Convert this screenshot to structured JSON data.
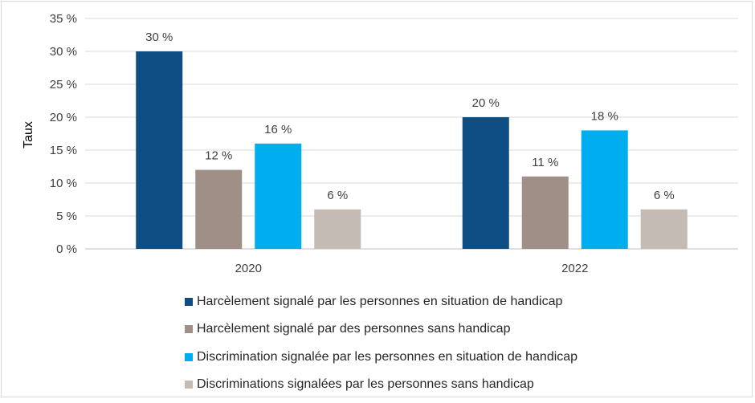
{
  "chart_data": {
    "type": "bar",
    "categories": [
      "2020",
      "2022"
    ],
    "series": [
      {
        "name": "Harcèlement signalé par les personnes en situation de handicap",
        "values": [
          30,
          20
        ],
        "color": "#0f4e82",
        "labels": [
          "30 %",
          "20 %"
        ]
      },
      {
        "name": "Harcèlement signalé par des personnes sans handicap",
        "values": [
          12,
          11
        ],
        "color": "#9f8f86",
        "labels": [
          "12 %",
          "11 %"
        ]
      },
      {
        "name": "Discrimination signalée par les personnes en situation de handicap",
        "values": [
          16,
          18
        ],
        "color": "#00aeef",
        "labels": [
          "16 %",
          "18 %"
        ]
      },
      {
        "name": "Discriminations signalées par les personnes sans handicap",
        "values": [
          6,
          6
        ],
        "color": "#c4bbb5",
        "labels": [
          "6 %",
          "6 %"
        ]
      }
    ],
    "ylabel": "Taux",
    "xlabel": "",
    "ylim": [
      0,
      35
    ],
    "yticks": [
      0,
      5,
      10,
      15,
      20,
      25,
      30,
      35
    ],
    "ytick_labels": [
      "0 %",
      "5 %",
      "10 %",
      "15 %",
      "20 %",
      "25 %",
      "30 %",
      "35 %"
    ],
    "grid": true,
    "legend_position": "bottom"
  }
}
